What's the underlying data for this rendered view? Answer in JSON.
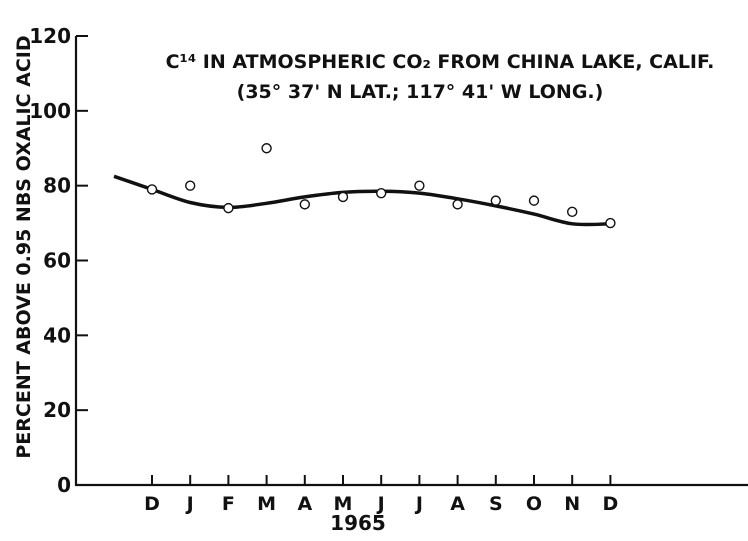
{
  "chart_data": {
    "type": "scatter",
    "title_line1": "C¹⁴ IN ATMOSPHERIC CO₂ FROM CHINA LAKE, CALIF.",
    "title_line2": "(35° 37' N LAT.; 117° 41' W LONG.)",
    "ylabel": "PERCENT ABOVE 0.95 NBS OXALIC ACID",
    "xlabel": "1965",
    "categories": [
      "D",
      "J",
      "F",
      "M",
      "A",
      "M",
      "J",
      "J",
      "A",
      "S",
      "O",
      "N",
      "D"
    ],
    "ylim": [
      0,
      120
    ],
    "yticks": [
      0,
      20,
      40,
      60,
      80,
      100,
      120
    ],
    "grid": false,
    "series": [
      {
        "kind": "points",
        "values": [
          79,
          80,
          74,
          90,
          75,
          77,
          78,
          80,
          75,
          76,
          76,
          73,
          70
        ]
      },
      {
        "kind": "fitted-curve",
        "x": [
          -1,
          0,
          1,
          2,
          3,
          4,
          5,
          6,
          7,
          8,
          9,
          10,
          11,
          12
        ],
        "values": [
          82.5,
          79.0,
          75.5,
          74.2,
          75.3,
          77.0,
          78.2,
          78.5,
          78.0,
          76.5,
          74.6,
          72.4,
          69.8,
          69.8
        ]
      }
    ]
  }
}
